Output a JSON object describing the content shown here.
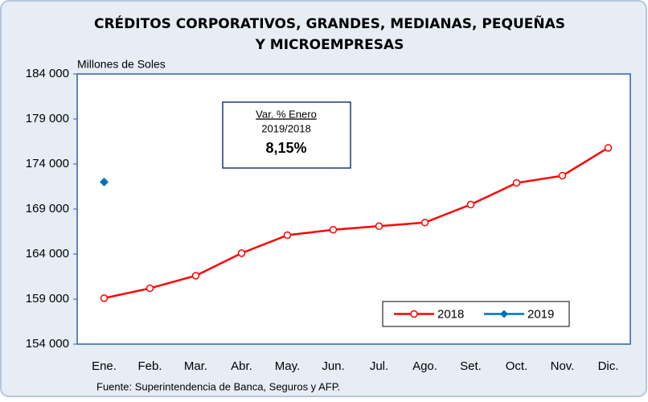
{
  "chart_data": {
    "type": "line",
    "title": [
      "CRÉDITOS CORPORATIVOS, GRANDES, MEDIANAS, PEQUEÑAS",
      "Y MICROEMPRESAS"
    ],
    "y_axis_label": "Millones de Soles",
    "source": "Fuente: Superintendencia de Banca, Seguros y AFP.",
    "annotation": {
      "heading": "Var. % Enero",
      "period": "2019/2018",
      "value": "8,15%"
    },
    "categories": [
      "Ene.",
      "Feb.",
      "Mar.",
      "Abr.",
      "May.",
      "Jun.",
      "Jul.",
      "Ago.",
      "Set.",
      "Oct.",
      "Nov.",
      "Dic."
    ],
    "series": [
      {
        "name": "2018",
        "color": "#ff0000",
        "marker": "circle",
        "values": [
          159100,
          160200,
          161600,
          164100,
          166100,
          166700,
          167100,
          167500,
          169500,
          171900,
          172700,
          175800
        ]
      },
      {
        "name": "2019",
        "color": "#0070c0",
        "marker": "diamond",
        "values": [
          172000,
          null,
          null,
          null,
          null,
          null,
          null,
          null,
          null,
          null,
          null,
          null
        ]
      }
    ],
    "ylim": [
      154000,
      184000
    ],
    "yticks": [
      {
        "value": 154000,
        "label": "154 000"
      },
      {
        "value": 159000,
        "label": "159 000"
      },
      {
        "value": 164000,
        "label": "164 000"
      },
      {
        "value": 169000,
        "label": "169 000"
      },
      {
        "value": 174000,
        "label": "174 000"
      },
      {
        "value": 179000,
        "label": "179 000"
      },
      {
        "value": 184000,
        "label": "184 000"
      }
    ],
    "grid": false,
    "legend": "lower right"
  }
}
